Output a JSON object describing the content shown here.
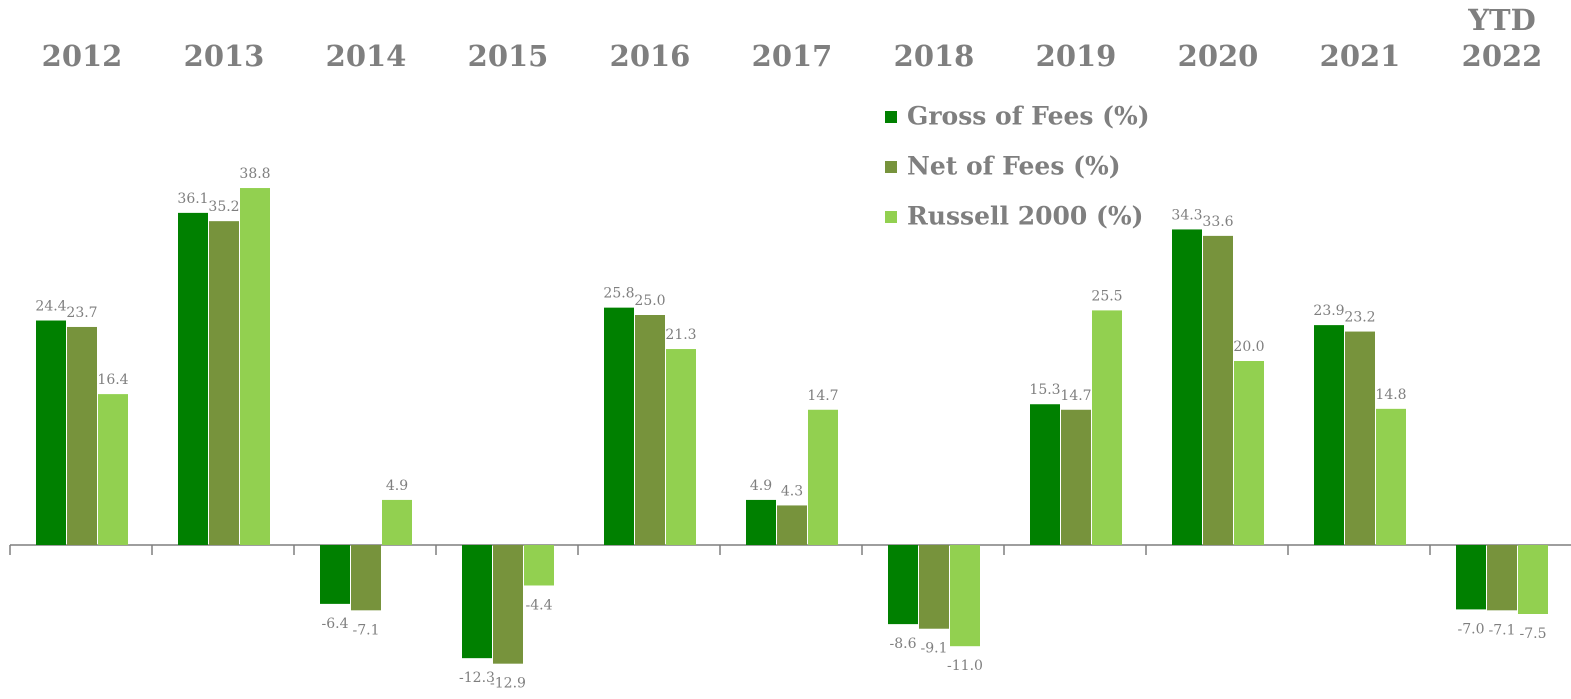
{
  "chart_data": {
    "type": "bar",
    "categories": [
      "2012",
      "2013",
      "2014",
      "2015",
      "2016",
      "2017",
      "2018",
      "2019",
      "2020",
      "2021",
      "YTD\n2022"
    ],
    "series": [
      {
        "name": "Gross of Fees (%)",
        "color": "#008000",
        "values": [
          24.4,
          36.1,
          -6.4,
          -12.3,
          25.8,
          4.9,
          -8.6,
          15.3,
          34.3,
          23.9,
          -7.0
        ],
        "value_labels": [
          "24.4",
          "36.1",
          "-6.4",
          "-12.3",
          "25.8",
          "4.9",
          "-8.6",
          "15.3",
          "34.3",
          "23.9",
          "-7.0"
        ]
      },
      {
        "name": "Net of Fees (%)",
        "color": "#77933c",
        "values": [
          23.7,
          35.2,
          -7.1,
          -12.9,
          25.0,
          4.3,
          -9.1,
          14.7,
          33.6,
          23.2,
          -7.1
        ],
        "value_labels": [
          "23.7",
          "35.2",
          "-7.1",
          "-12.9",
          "25.0",
          "4.3",
          "-9.1",
          "14.7",
          "33.6",
          "23.2",
          "-7.1"
        ]
      },
      {
        "name": "Russell 2000 (%)",
        "color": "#92d050",
        "values": [
          16.4,
          38.8,
          4.9,
          -4.4,
          21.3,
          14.7,
          -11.0,
          25.5,
          20.0,
          14.8,
          -7.5
        ],
        "value_labels": [
          "16.4",
          "38.8",
          "4.9",
          "-4.4",
          "21.3",
          "14.7",
          "-11.0",
          "25.5",
          "20.0",
          "14.8",
          "-7.5"
        ]
      }
    ],
    "ylim": [
      -15,
      40
    ]
  }
}
